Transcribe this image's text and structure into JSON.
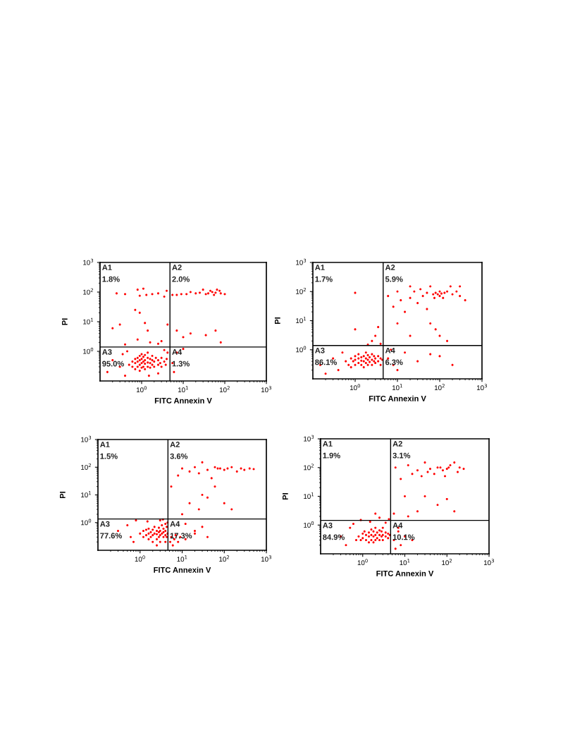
{
  "chart_data": [
    {
      "type": "scatter",
      "xlabel": "FITC Annexin V",
      "ylabel": "PI",
      "log": "xy",
      "grid": false,
      "marker": "circle",
      "xlim": [
        0.1,
        1000
      ],
      "ylim": [
        0.1,
        1000
      ],
      "xticks": [
        {
          "value": 1,
          "label": "10$^{0}$"
        },
        {
          "value": 10,
          "label": "10$^{1}$"
        },
        {
          "value": 100,
          "label": "10$^{2}$"
        },
        {
          "value": 1000,
          "label": "10$^{3}$"
        }
      ],
      "yticks": [
        {
          "value": 1,
          "label": "10$^{0}$"
        },
        {
          "value": 10,
          "label": "10$^{1}$"
        },
        {
          "value": 100,
          "label": "10$^{2}$"
        },
        {
          "value": 1000,
          "label": "10$^{3}$"
        }
      ],
      "ref_lines": [
        {
          "axis": "x",
          "value": 4.8,
          "color": "#000000"
        },
        {
          "axis": "y",
          "value": 1.4,
          "color": "#000000"
        }
      ],
      "annotations": [
        "A1",
        "1.8%",
        "A2",
        "2.0%",
        "A3",
        "95.0%",
        "A4",
        "1.3%"
      ],
      "series": [
        {
          "color": "#ff0000",
          "x": [
            0.5,
            0.6,
            0.6,
            0.7,
            0.7,
            0.7,
            0.8,
            0.8,
            0.8,
            0.9,
            0.9,
            0.9,
            0.9,
            1.0,
            1.0,
            1.0,
            1.0,
            1.1,
            1.1,
            1.1,
            1.2,
            1.2,
            1.2,
            1.2,
            1.4,
            1.4,
            1.4,
            1.4,
            1.6,
            1.6,
            1.6,
            1.8,
            1.8,
            1.8,
            2.0,
            2.0,
            2.2,
            2.5,
            2.5,
            2.8,
            3.0,
            3.0,
            3.5,
            3.8,
            4.0,
            0.15,
            0.2,
            0.3,
            0.35,
            0.4,
            0.45,
            1.5,
            2.5,
            3.5,
            4.2,
            0.25,
            0.4,
            0.8,
            0.9,
            1.1,
            1.3,
            1.8,
            2.5,
            3.5,
            4.0,
            0.7,
            0.9,
            1.2,
            1.4,
            0.2,
            0.3,
            0.8,
            1.6,
            2.5,
            0.4,
            3.0,
            4.2,
            5.5,
            7,
            9,
            12,
            15,
            20,
            25,
            30,
            35,
            40,
            45,
            50,
            55,
            60,
            65,
            75,
            80,
            100,
            7,
            10,
            15,
            35,
            60,
            80,
            6,
            7,
            10,
            5.5
          ],
          "values": [
            0.35,
            0.3,
            0.45,
            0.25,
            0.4,
            0.55,
            0.3,
            0.45,
            0.6,
            0.22,
            0.35,
            0.5,
            0.7,
            0.28,
            0.4,
            0.55,
            0.8,
            0.3,
            0.45,
            0.65,
            0.25,
            0.38,
            0.5,
            0.75,
            0.3,
            0.42,
            0.6,
            0.9,
            0.28,
            0.4,
            0.55,
            0.35,
            0.5,
            0.7,
            0.3,
            0.45,
            0.6,
            0.35,
            0.5,
            0.4,
            0.3,
            0.6,
            0.45,
            0.35,
            0.55,
            0.2,
            0.5,
            0.3,
            0.8,
            0.15,
            1.0,
            0.15,
            0.18,
            1.1,
            0.9,
            90,
            85,
            120,
            75,
            130,
            80,
            85,
            90,
            70,
            110,
            25,
            20,
            9,
            5,
            6,
            8,
            2.5,
            2,
            1.8,
            1.7,
            2.2,
            8,
            80,
            80,
            85,
            85,
            100,
            90,
            95,
            120,
            85,
            90,
            110,
            100,
            80,
            95,
            120,
            110,
            90,
            85,
            5,
            3,
            4,
            3.5,
            5,
            2,
            0.2,
            0.9,
            1.2,
            0.4
          ]
        }
      ]
    },
    {
      "type": "scatter",
      "xlabel": "FITC Annexin V",
      "ylabel": "PI",
      "log": "xy",
      "grid": false,
      "marker": "circle",
      "xlim": [
        0.1,
        1000
      ],
      "ylim": [
        0.1,
        1000
      ],
      "xticks": [
        {
          "value": 1,
          "label": "10$^{0}$"
        },
        {
          "value": 10,
          "label": "10$^{1}$"
        },
        {
          "value": 100,
          "label": "10$^{2}$"
        },
        {
          "value": 1000,
          "label": "10$^{3}$"
        }
      ],
      "yticks": [
        {
          "value": 1,
          "label": "10$^{0}$"
        },
        {
          "value": 10,
          "label": "10$^{1}$"
        },
        {
          "value": 100,
          "label": "10$^{2}$"
        },
        {
          "value": 1000,
          "label": "10$^{3}$"
        }
      ],
      "ref_lines": [
        {
          "axis": "x",
          "value": 4.6,
          "color": "#000000"
        },
        {
          "axis": "y",
          "value": 1.4,
          "color": "#000000"
        }
      ],
      "annotations": [
        "A1",
        "1.7%",
        "A2",
        "5.9%",
        "A3",
        "86.1%",
        "A4",
        "6.3%"
      ],
      "series": [
        {
          "color": "#ff0000",
          "x": [
            0.6,
            0.7,
            0.8,
            0.8,
            0.9,
            1.0,
            1.0,
            1.0,
            1.2,
            1.2,
            1.2,
            1.4,
            1.4,
            1.4,
            1.6,
            1.6,
            1.6,
            1.8,
            1.8,
            1.8,
            2.0,
            2.0,
            2.0,
            2.2,
            2.2,
            2.5,
            2.5,
            2.5,
            2.8,
            2.8,
            3.0,
            3.0,
            3.5,
            3.5,
            4.0,
            4.0,
            4.4,
            0.15,
            0.2,
            0.3,
            0.4,
            0.5,
            1.0,
            1.0,
            2.5,
            3.0,
            4.0,
            2.0,
            3.5,
            6,
            8,
            10,
            12,
            15,
            20,
            20,
            25,
            30,
            35,
            40,
            50,
            50,
            60,
            70,
            75,
            80,
            90,
            100,
            100,
            110,
            120,
            130,
            150,
            180,
            200,
            250,
            300,
            400,
            300,
            60,
            80,
            100,
            150,
            20,
            10,
            6,
            8,
            15,
            30,
            60,
            100,
            10,
            7,
            200
          ],
          "values": [
            0.4,
            0.3,
            0.5,
            0.25,
            0.4,
            0.3,
            0.45,
            0.6,
            0.35,
            0.5,
            0.7,
            0.3,
            0.42,
            0.55,
            0.25,
            0.4,
            0.6,
            0.35,
            0.5,
            0.8,
            0.3,
            0.45,
            0.65,
            0.38,
            0.55,
            0.3,
            0.45,
            0.7,
            0.4,
            0.6,
            0.35,
            0.5,
            0.4,
            0.6,
            0.3,
            0.5,
            0.45,
            0.3,
            0.15,
            0.5,
            0.2,
            0.8,
            90,
            5,
            2,
            3,
            1.6,
            1.5,
            6,
            70,
            30,
            100,
            50,
            20,
            150,
            60,
            100,
            40,
            120,
            70,
            90,
            25,
            150,
            80,
            60,
            90,
            80,
            100,
            70,
            85,
            60,
            90,
            100,
            150,
            80,
            100,
            70,
            50,
            150,
            8,
            5,
            3,
            2,
            3,
            8,
            0.5,
            0.3,
            0.8,
            0.4,
            0.7,
            0.6,
            0.2,
            1.0,
            0.3
          ]
        }
      ]
    },
    {
      "type": "scatter",
      "xlabel": "FITC Annexin V",
      "ylabel": "PI",
      "log": "xy",
      "grid": false,
      "marker": "circle",
      "xlim": [
        0.1,
        1000
      ],
      "ylim": [
        0.1,
        1000
      ],
      "xticks": [
        {
          "value": 1,
          "label": "10$^{0}$"
        },
        {
          "value": 10,
          "label": "10$^{1}$"
        },
        {
          "value": 100,
          "label": "10$^{2}$"
        },
        {
          "value": 1000,
          "label": "10$^{3}$"
        }
      ],
      "yticks": [
        {
          "value": 1,
          "label": "10$^{0}$"
        },
        {
          "value": 10,
          "label": "10$^{1}$"
        },
        {
          "value": 100,
          "label": "10$^{2}$"
        },
        {
          "value": 1000,
          "label": "10$^{3}$"
        }
      ],
      "ref_lines": [
        {
          "axis": "x",
          "value": 4.6,
          "color": "#000000"
        },
        {
          "axis": "y",
          "value": 1.35,
          "color": "#000000"
        }
      ],
      "annotations": [
        "A1",
        "1.5%",
        "A2",
        "3.6%",
        "A3",
        "77.6%",
        "A4",
        "17.3%"
      ],
      "series": [
        {
          "color": "#ff0000",
          "x": [
            1.0,
            1.2,
            1.2,
            1.4,
            1.4,
            1.6,
            1.6,
            1.6,
            1.8,
            1.8,
            2.0,
            2.0,
            2.0,
            2.2,
            2.2,
            2.5,
            2.5,
            2.5,
            2.8,
            2.8,
            2.8,
            3.0,
            3.0,
            3.0,
            3.3,
            3.3,
            3.6,
            3.6,
            3.6,
            4.0,
            4.0,
            4.0,
            4.3,
            4.3,
            4.5,
            4.5,
            0.3,
            0.5,
            0.6,
            0.8,
            0.7,
            1.5,
            2.5,
            3.0,
            4.0,
            3.5,
            5.2,
            5.5,
            6,
            6.5,
            7,
            8,
            9,
            12,
            20,
            40,
            5.5,
            8,
            10,
            15,
            20,
            25,
            30,
            40,
            50,
            60,
            70,
            80,
            100,
            120,
            150,
            200,
            250,
            300,
            400,
            500,
            30,
            60,
            15,
            25,
            40,
            100,
            150,
            10,
            12,
            20,
            30
          ],
          "values": [
            0.4,
            0.3,
            0.5,
            0.35,
            0.55,
            0.25,
            0.4,
            0.6,
            0.3,
            0.45,
            0.2,
            0.35,
            0.55,
            0.4,
            0.7,
            0.25,
            0.38,
            0.5,
            0.3,
            0.45,
            0.65,
            0.2,
            0.35,
            0.5,
            0.4,
            0.8,
            0.3,
            0.45,
            0.6,
            0.2,
            0.35,
            0.5,
            0.3,
            0.7,
            0.4,
            1.0,
            0.5,
            0.8,
            0.3,
            1.2,
            0.2,
            1.1,
            0.15,
            1.2,
            0.9,
            1.3,
            0.2,
            0.3,
            0.15,
            0.25,
            0.35,
            0.2,
            0.3,
            0.25,
            0.4,
            0.3,
            20,
            50,
            90,
            70,
            100,
            60,
            150,
            80,
            40,
            100,
            90,
            90,
            80,
            90,
            100,
            70,
            90,
            80,
            90,
            85,
            10,
            20,
            5,
            3,
            8,
            5,
            3,
            2,
            0.9,
            0.5,
            0.7
          ]
        }
      ]
    },
    {
      "type": "scatter",
      "xlabel": "FITC Annexin V",
      "ylabel": "PI",
      "log": "xy",
      "grid": false,
      "marker": "circle",
      "xlim": [
        0.1,
        1000
      ],
      "ylim": [
        0.1,
        1000
      ],
      "xticks": [
        {
          "value": 1,
          "label": "10$^{0}$"
        },
        {
          "value": 10,
          "label": "10$^{1}$"
        },
        {
          "value": 100,
          "label": "10$^{2}$"
        },
        {
          "value": 1000,
          "label": "10$^{3}$"
        }
      ],
      "yticks": [
        {
          "value": 1,
          "label": "10$^{0}$"
        },
        {
          "value": 10,
          "label": "10$^{1}$"
        },
        {
          "value": 100,
          "label": "10$^{2}$"
        },
        {
          "value": 1000,
          "label": "10$^{3}$"
        }
      ],
      "ref_lines": [
        {
          "axis": "x",
          "value": 4.6,
          "color": "#000000"
        },
        {
          "axis": "y",
          "value": 1.45,
          "color": "#000000"
        }
      ],
      "annotations": [
        "A1",
        "1.9%",
        "A2",
        "3.1%",
        "A3",
        "84.9%",
        "A4",
        "10.1%"
      ],
      "series": [
        {
          "color": "#ff0000",
          "x": [
            0.8,
            0.9,
            1.0,
            1.0,
            1.1,
            1.2,
            1.2,
            1.4,
            1.4,
            1.4,
            1.6,
            1.6,
            1.6,
            1.8,
            1.8,
            1.8,
            2.0,
            2.0,
            2.0,
            2.2,
            2.2,
            2.5,
            2.5,
            2.5,
            2.8,
            2.8,
            3.0,
            3.0,
            3.0,
            3.5,
            3.5,
            4.0,
            4.0,
            4.4,
            0.3,
            0.4,
            0.5,
            0.6,
            0.7,
            0.9,
            1.5,
            2.5,
            3.5,
            4.2,
            2.0,
            5.5,
            6,
            7,
            8,
            10,
            15,
            5.5,
            6,
            8,
            10,
            12,
            15,
            20,
            25,
            30,
            35,
            40,
            50,
            60,
            70,
            80,
            90,
            100,
            110,
            120,
            150,
            180,
            200,
            250,
            30,
            60,
            100,
            150,
            12,
            20,
            7
          ],
          "values": [
            0.4,
            0.3,
            0.5,
            0.35,
            0.6,
            0.3,
            0.45,
            0.25,
            0.4,
            0.55,
            0.3,
            0.45,
            0.7,
            0.25,
            0.4,
            0.6,
            0.3,
            0.45,
            0.8,
            0.35,
            0.55,
            0.3,
            0.45,
            0.65,
            0.4,
            0.6,
            0.3,
            0.45,
            0.8,
            0.4,
            0.55,
            0.35,
            0.5,
            0.45,
            0.4,
            0.2,
            0.8,
            1.1,
            0.3,
            1.5,
            1.3,
            1.8,
            1.2,
            1.6,
            2.5,
            0.3,
            0.15,
            0.6,
            0.2,
            0.4,
            0.3,
            2.5,
            100,
            40,
            10,
            120,
            60,
            80,
            50,
            150,
            70,
            90,
            60,
            100,
            100,
            80,
            50,
            90,
            100,
            120,
            150,
            70,
            100,
            90,
            10,
            5,
            8,
            3,
            2,
            3,
            0.8
          ]
        }
      ]
    }
  ]
}
